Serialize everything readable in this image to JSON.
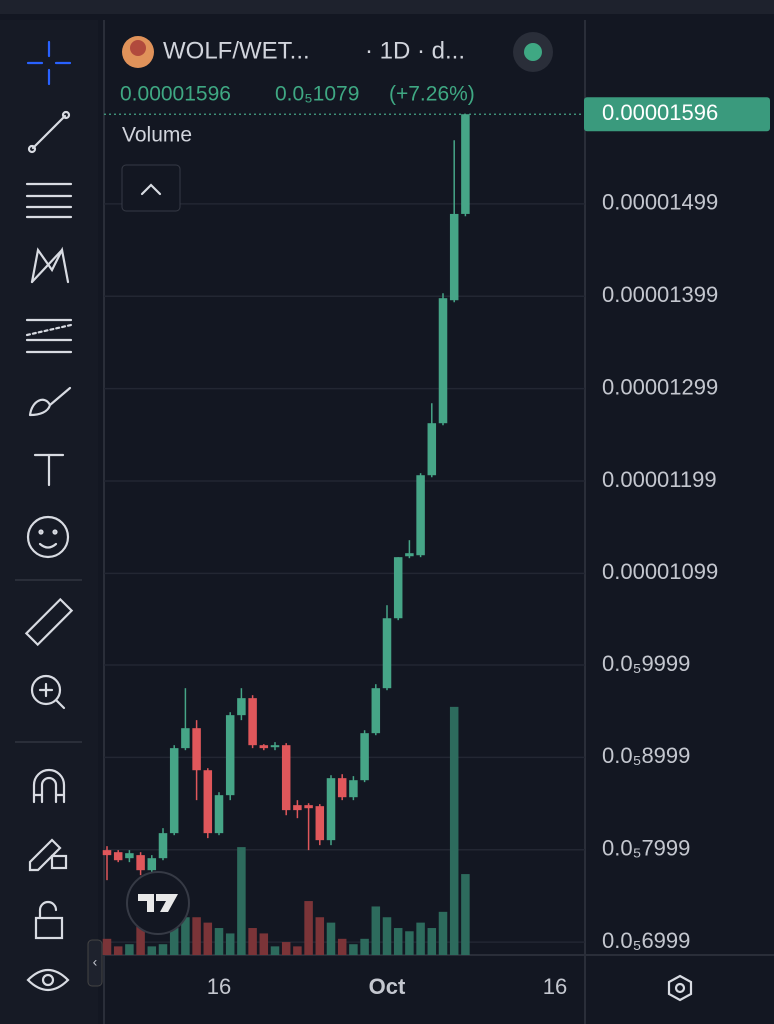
{
  "chart_data": {
    "type": "candlestick",
    "symbol": "WOLF/WET...",
    "interval": "· 1D · d...",
    "header_price": "0.00001596",
    "change": "0.0₅1079",
    "change_pct": "(+7.26%)",
    "volume_label": "Volume",
    "price_line": 1.596e-05,
    "categories": [
      null,
      null,
      null,
      null,
      null,
      null,
      null,
      null,
      null,
      null,
      "16",
      null,
      null,
      null,
      null,
      null,
      null,
      null,
      null,
      null,
      null,
      null,
      null,
      null,
      null,
      "Oct",
      null,
      null,
      null,
      null,
      null,
      null,
      null,
      null,
      null,
      null,
      null,
      null,
      null,
      null,
      "16",
      null,
      null
    ],
    "open": [
      7.995e-06,
      7.973e-06,
      7.908e-06,
      7.941e-06,
      7.778e-06,
      7.908e-06,
      8.179e-06,
      9.099e-06,
      9.315e-06,
      8.86e-06,
      8.179e-06,
      8.59e-06,
      9.456e-06,
      9.64e-06,
      9.131e-06,
      9.109e-06,
      9.131e-06,
      8.482e-06,
      8.482e-06,
      8.471e-06,
      8.103e-06,
      8.774e-06,
      8.568e-06,
      8.752e-06,
      9.261e-06,
      9.748e-06,
      1.0505e-05,
      1.1176e-05,
      1.1187e-05,
      1.2053e-05,
      1.2616e-05,
      1.3947e-05,
      1.4881e-05,
      null,
      null,
      null,
      null,
      null,
      null,
      null,
      null,
      null,
      null
    ],
    "high": [
      8.038e-06,
      7.995e-06,
      7.995e-06,
      7.973e-06,
      7.941e-06,
      8.233e-06,
      9.131e-06,
      9.748e-06,
      9.402e-06,
      8.882e-06,
      8.622e-06,
      9.488e-06,
      9.748e-06,
      9.672e-06,
      9.142e-06,
      9.164e-06,
      9.153e-06,
      8.536e-06,
      8.503e-06,
      8.493e-06,
      8.806e-06,
      8.817e-06,
      8.796e-06,
      9.293e-06,
      9.791e-06,
      1.0646e-05,
      1.1166e-05,
      1.135e-05,
      1.2075e-05,
      1.2832e-05,
      1.4023e-05,
      1.5679e-05,
      1.596e-05,
      null,
      null,
      null,
      null,
      null,
      null,
      null,
      null,
      null,
      null
    ],
    "low": [
      7.67e-06,
      7.865e-06,
      7.865e-06,
      7.724e-06,
      7.757e-06,
      7.886e-06,
      8.157e-06,
      9.077e-06,
      8.536e-06,
      8.125e-06,
      8.157e-06,
      8.536e-06,
      9.402e-06,
      9.099e-06,
      9.077e-06,
      9.077e-06,
      8.373e-06,
      8.341e-06,
      7.995e-06,
      8.049e-06,
      8.049e-06,
      8.536e-06,
      8.536e-06,
      8.731e-06,
      9.239e-06,
      9.726e-06,
      1.0484e-05,
      1.1155e-05,
      1.1166e-05,
      1.2031e-05,
      1.2594e-05,
      1.3925e-05,
      1.4856e-05,
      null,
      null,
      null,
      null,
      null,
      null,
      null,
      null,
      null,
      null
    ],
    "close": [
      7.941e-06,
      7.886e-06,
      7.962e-06,
      7.778e-06,
      7.908e-06,
      8.179e-06,
      9.099e-06,
      9.315e-06,
      8.86e-06,
      8.179e-06,
      8.59e-06,
      9.456e-06,
      9.64e-06,
      9.131e-06,
      9.099e-06,
      9.131e-06,
      8.428e-06,
      8.428e-06,
      8.449e-06,
      8.103e-06,
      8.774e-06,
      8.568e-06,
      8.752e-06,
      9.261e-06,
      9.748e-06,
      1.0505e-05,
      1.1166e-05,
      1.1209e-05,
      1.2053e-05,
      1.2616e-05,
      1.3969e-05,
      1.4881e-05,
      1.596e-05,
      null,
      null,
      null,
      null,
      null,
      null,
      null,
      null,
      null,
      null
    ],
    "volume": [
      15,
      8,
      10,
      35,
      8,
      10,
      25,
      35,
      35,
      30,
      25,
      20,
      100,
      25,
      20,
      8,
      12,
      8,
      50,
      35,
      30,
      15,
      10,
      15,
      45,
      35,
      25,
      22,
      30,
      25,
      40,
      230,
      75,
      null,
      null,
      null,
      null,
      null,
      null,
      null,
      null,
      null,
      null
    ],
    "volume_ylim": [
      0,
      260
    ],
    "ylim": [
      6.86e-06,
      1.698e-05
    ],
    "yticks": [
      1.499e-05,
      1.399e-05,
      1.299e-05,
      1.199e-05,
      1.099e-05,
      {
        "value": 9.999e-06,
        "label": "0.0₅9999"
      },
      {
        "value": 8.999e-06,
        "label": "0.0₅8999"
      },
      {
        "value": 7.999e-06,
        "label": "0.0₅7999"
      },
      {
        "value": 6.999e-06,
        "label": "0.0₅6999"
      }
    ],
    "grid": true,
    "up_color": "#46a587",
    "down_color": "#e0575b",
    "volume_up_color": "#2d6b5d",
    "volume_down_color": "#7b3438"
  }
}
